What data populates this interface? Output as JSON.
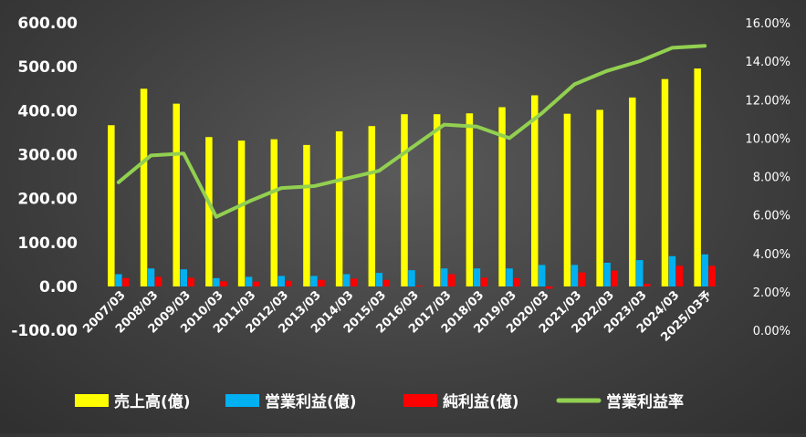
{
  "chart_data": {
    "type": "bar",
    "categories": [
      "2007/03",
      "2008/03",
      "2009/03",
      "2010/03",
      "2011/03",
      "2012/03",
      "2013/03",
      "2014/03",
      "2015/03",
      "2016/03",
      "2017/03",
      "2018/03",
      "2019/03",
      "2020/03",
      "2021/03",
      "2022/03",
      "2023/03",
      "2024/03",
      "2025/03予"
    ],
    "series": [
      {
        "name": "売上高(億)",
        "axis": "left",
        "kind": "bar",
        "color": "#ffff00",
        "values": [
          367,
          450,
          416,
          340,
          332,
          335,
          322,
          353,
          365,
          392,
          392,
          394,
          408,
          435,
          393,
          402,
          430,
          472,
          496
        ]
      },
      {
        "name": "営業利益(億)",
        "axis": "left",
        "kind": "bar",
        "color": "#00b0f0",
        "values": [
          28,
          41,
          39,
          19,
          22,
          24,
          24,
          28,
          31,
          37,
          41,
          41,
          41,
          49,
          49,
          54,
          60,
          69,
          73
        ]
      },
      {
        "name": "純利益(億)",
        "axis": "left",
        "kind": "bar",
        "color": "#ff0000",
        "values": [
          19,
          22,
          20,
          12,
          11,
          13,
          15,
          18,
          15,
          2,
          28,
          20,
          19,
          -5,
          32,
          36,
          6,
          47,
          47
        ]
      },
      {
        "name": "営業利益率",
        "axis": "right",
        "kind": "line",
        "color": "#92d050",
        "values": [
          7.7,
          9.1,
          9.2,
          5.9,
          6.7,
          7.4,
          7.5,
          7.9,
          8.3,
          9.5,
          10.7,
          10.6,
          10.0,
          11.3,
          12.8,
          13.5,
          14.0,
          14.7,
          14.8
        ]
      }
    ],
    "y_left": {
      "min": -100,
      "max": 600,
      "step": 100,
      "tick_labels": [
        "-100.00",
        "0.00",
        "100.00",
        "200.00",
        "300.00",
        "400.00",
        "500.00",
        "600.00"
      ]
    },
    "y_right": {
      "min": 0,
      "max": 16,
      "step": 2,
      "tick_labels": [
        "0.00%",
        "2.00%",
        "4.00%",
        "6.00%",
        "8.00%",
        "10.00%",
        "12.00%",
        "14.00%",
        "16.00%"
      ]
    },
    "grid": false,
    "legend": "bottom"
  }
}
